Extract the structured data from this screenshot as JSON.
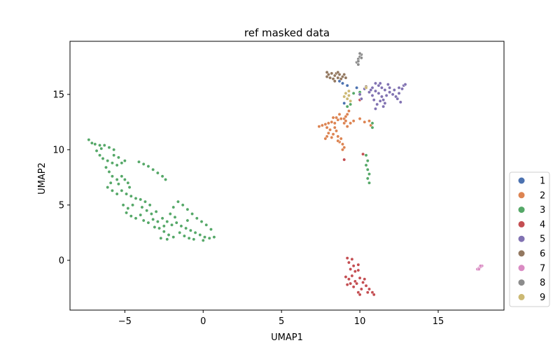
{
  "chart_data": {
    "type": "scatter",
    "title": "ref masked data",
    "xlabel": "UMAP1",
    "ylabel": "UMAP2",
    "xlim": [
      -8.5,
      19.2
    ],
    "ylim": [
      -4.5,
      19.8
    ],
    "xticks": [
      -5,
      0,
      5,
      10,
      15
    ],
    "yticks": [
      0,
      5,
      10,
      15
    ],
    "grid": false,
    "legend_position": "right-outside-bottom",
    "legend": [
      "1",
      "2",
      "3",
      "4",
      "5",
      "6",
      "7",
      "8",
      "9"
    ],
    "series": [
      {
        "name": "1",
        "color": "#4c72b0",
        "points": [
          [
            8.7,
            16.2
          ],
          [
            8.9,
            16.0
          ],
          [
            9.2,
            15.8
          ],
          [
            9.8,
            15.6
          ],
          [
            9.0,
            14.2
          ]
        ]
      },
      {
        "name": "2",
        "color": "#dd8452",
        "points": [
          [
            7.4,
            12.1
          ],
          [
            7.6,
            12.2
          ],
          [
            7.8,
            12.3
          ],
          [
            8.0,
            12.4
          ],
          [
            8.2,
            12.5
          ],
          [
            8.4,
            12.4
          ],
          [
            8.6,
            12.7
          ],
          [
            8.8,
            12.8
          ],
          [
            9.0,
            12.8
          ],
          [
            9.1,
            13.0
          ],
          [
            9.2,
            13.2
          ],
          [
            9.3,
            13.5
          ],
          [
            8.4,
            12.0
          ],
          [
            8.5,
            11.7
          ],
          [
            8.3,
            11.4
          ],
          [
            8.2,
            11.1
          ],
          [
            8.6,
            11.2
          ],
          [
            8.8,
            11.0
          ],
          [
            8.7,
            10.7
          ],
          [
            8.9,
            10.5
          ],
          [
            9.0,
            10.2
          ],
          [
            8.9,
            10.0
          ],
          [
            8.1,
            11.8
          ],
          [
            8.0,
            11.5
          ],
          [
            7.9,
            11.2
          ],
          [
            7.8,
            11.0
          ],
          [
            8.5,
            12.9
          ],
          [
            8.7,
            13.2
          ],
          [
            9.0,
            12.4
          ],
          [
            9.2,
            12.1
          ],
          [
            9.4,
            12.4
          ],
          [
            9.6,
            12.6
          ],
          [
            10.0,
            12.8
          ],
          [
            10.3,
            12.5
          ],
          [
            10.6,
            12.6
          ],
          [
            10.7,
            12.2
          ],
          [
            8.3,
            12.9
          ],
          [
            7.9,
            12.0
          ],
          [
            8.6,
            10.8
          ],
          [
            9.1,
            12.6
          ]
        ]
      },
      {
        "name": "3",
        "color": "#55a868",
        "points": [
          [
            -7.3,
            10.9
          ],
          [
            -7.1,
            10.6
          ],
          [
            -6.9,
            10.5
          ],
          [
            -6.6,
            10.4
          ],
          [
            -6.3,
            10.4
          ],
          [
            -6.0,
            10.2
          ],
          [
            -5.7,
            10.0
          ],
          [
            -6.8,
            9.9
          ],
          [
            -6.6,
            9.5
          ],
          [
            -6.4,
            9.2
          ],
          [
            -6.1,
            9.0
          ],
          [
            -5.8,
            8.8
          ],
          [
            -5.5,
            8.6
          ],
          [
            -5.2,
            8.8
          ],
          [
            -5.4,
            9.3
          ],
          [
            -5.7,
            9.5
          ],
          [
            -6.2,
            8.4
          ],
          [
            -6.0,
            8.0
          ],
          [
            -5.8,
            7.6
          ],
          [
            -5.5,
            7.3
          ],
          [
            -5.2,
            7.6
          ],
          [
            -5.0,
            7.3
          ],
          [
            -4.8,
            7.0
          ],
          [
            -5.4,
            6.9
          ],
          [
            -5.9,
            7.0
          ],
          [
            -6.1,
            6.6
          ],
          [
            -5.8,
            6.3
          ],
          [
            -5.5,
            6.0
          ],
          [
            -5.2,
            6.3
          ],
          [
            -4.9,
            6.0
          ],
          [
            -4.6,
            5.8
          ],
          [
            -4.3,
            5.6
          ],
          [
            -4.0,
            5.5
          ],
          [
            -3.7,
            5.3
          ],
          [
            -3.4,
            5.0
          ],
          [
            -4.5,
            5.0
          ],
          [
            -4.8,
            4.7
          ],
          [
            -5.1,
            5.0
          ],
          [
            -4.9,
            4.3
          ],
          [
            -4.6,
            4.0
          ],
          [
            -4.3,
            3.8
          ],
          [
            -4.0,
            4.1
          ],
          [
            -3.8,
            3.6
          ],
          [
            -3.5,
            3.4
          ],
          [
            -3.2,
            3.7
          ],
          [
            -2.9,
            3.5
          ],
          [
            -2.6,
            3.8
          ],
          [
            -2.3,
            3.5
          ],
          [
            -2.0,
            3.2
          ],
          [
            -1.7,
            3.4
          ],
          [
            -1.4,
            3.1
          ],
          [
            -1.1,
            2.9
          ],
          [
            -0.8,
            2.7
          ],
          [
            -0.5,
            2.5
          ],
          [
            -0.2,
            2.3
          ],
          [
            0.1,
            2.1
          ],
          [
            0.4,
            2.0
          ],
          [
            0.7,
            2.1
          ],
          [
            -2.8,
            2.9
          ],
          [
            -2.5,
            2.6
          ],
          [
            -2.2,
            2.3
          ],
          [
            -1.9,
            2.1
          ],
          [
            -2.3,
            1.9
          ],
          [
            -2.7,
            2.0
          ],
          [
            -1.5,
            2.5
          ],
          [
            -1.2,
            2.2
          ],
          [
            -0.9,
            2.0
          ],
          [
            -0.6,
            1.9
          ],
          [
            0.0,
            1.8
          ],
          [
            -1.6,
            5.3
          ],
          [
            -1.3,
            5.0
          ],
          [
            -1.0,
            4.6
          ],
          [
            -0.7,
            4.2
          ],
          [
            -0.4,
            3.8
          ],
          [
            -0.1,
            3.5
          ],
          [
            0.2,
            3.2
          ],
          [
            0.5,
            2.8
          ],
          [
            -1.9,
            4.8
          ],
          [
            -2.1,
            4.2
          ],
          [
            -1.8,
            3.9
          ],
          [
            -3.0,
            4.4
          ],
          [
            -3.3,
            4.2
          ],
          [
            -3.6,
            4.5
          ],
          [
            -4.1,
            8.9
          ],
          [
            -3.8,
            8.7
          ],
          [
            -3.5,
            8.5
          ],
          [
            -3.2,
            8.2
          ],
          [
            -2.9,
            7.9
          ],
          [
            -2.6,
            7.6
          ],
          [
            -2.4,
            7.3
          ],
          [
            -6.5,
            10.1
          ],
          [
            -5.0,
            9.0
          ],
          [
            -4.7,
            6.6
          ],
          [
            -3.9,
            4.8
          ],
          [
            -2.5,
            3.1
          ],
          [
            -1.0,
            3.6
          ],
          [
            -3.1,
            3.0
          ],
          [
            9.2,
            13.9
          ],
          [
            9.4,
            14.1
          ],
          [
            10.4,
            9.5
          ],
          [
            10.5,
            9.0
          ],
          [
            10.4,
            8.6
          ],
          [
            10.5,
            8.2
          ],
          [
            10.6,
            7.8
          ],
          [
            10.5,
            7.4
          ],
          [
            10.6,
            7.0
          ],
          [
            10.8,
            12.4
          ],
          [
            10.8,
            12.0
          ],
          [
            9.6,
            15.1
          ],
          [
            10.0,
            15.2
          ]
        ]
      },
      {
        "name": "4",
        "color": "#c44e52",
        "points": [
          [
            9.2,
            0.2
          ],
          [
            9.3,
            -0.2
          ],
          [
            9.5,
            0.1
          ],
          [
            9.6,
            -0.5
          ],
          [
            9.4,
            -0.8
          ],
          [
            9.7,
            -1.0
          ],
          [
            9.9,
            -0.9
          ],
          [
            9.5,
            -1.4
          ],
          [
            9.3,
            -1.7
          ],
          [
            9.4,
            -2.1
          ],
          [
            9.7,
            -1.9
          ],
          [
            10.0,
            -1.6
          ],
          [
            10.2,
            -2.0
          ],
          [
            10.4,
            -2.3
          ],
          [
            10.6,
            -2.6
          ],
          [
            10.8,
            -2.9
          ],
          [
            10.9,
            -3.1
          ],
          [
            10.1,
            -2.6
          ],
          [
            9.9,
            -2.9
          ],
          [
            10.0,
            -3.1
          ],
          [
            9.6,
            -2.4
          ],
          [
            9.2,
            -2.2
          ],
          [
            9.8,
            -2.1
          ],
          [
            10.3,
            -1.7
          ],
          [
            10.5,
            -2.9
          ],
          [
            9.1,
            -1.5
          ],
          [
            9.0,
            9.1
          ],
          [
            10.2,
            9.6
          ],
          [
            10.0,
            14.5
          ],
          [
            9.9,
            -0.4
          ]
        ]
      },
      {
        "name": "5",
        "color": "#8172b2",
        "points": [
          [
            10.8,
            15.6
          ],
          [
            11.0,
            15.3
          ],
          [
            11.2,
            15.1
          ],
          [
            11.4,
            14.8
          ],
          [
            11.3,
            14.4
          ],
          [
            11.1,
            14.1
          ],
          [
            11.0,
            13.7
          ],
          [
            11.5,
            14.5
          ],
          [
            11.7,
            14.9
          ],
          [
            11.9,
            15.2
          ],
          [
            12.1,
            15.0
          ],
          [
            12.3,
            14.8
          ],
          [
            12.5,
            15.1
          ],
          [
            12.7,
            15.5
          ],
          [
            12.8,
            15.8
          ],
          [
            12.5,
            15.6
          ],
          [
            12.2,
            15.4
          ],
          [
            11.9,
            15.6
          ],
          [
            11.6,
            15.4
          ],
          [
            11.4,
            15.6
          ],
          [
            11.2,
            15.8
          ],
          [
            11.0,
            16.0
          ],
          [
            10.8,
            14.9
          ],
          [
            10.6,
            15.2
          ],
          [
            11.3,
            16.0
          ],
          [
            11.8,
            15.9
          ],
          [
            12.4,
            14.6
          ],
          [
            12.6,
            14.3
          ],
          [
            10.9,
            14.5
          ],
          [
            10.7,
            15.4
          ],
          [
            10.3,
            15.5
          ],
          [
            10.0,
            15.0
          ],
          [
            10.1,
            14.6
          ],
          [
            12.9,
            15.9
          ],
          [
            11.5,
            13.9
          ],
          [
            11.6,
            14.2
          ]
        ]
      },
      {
        "name": "6",
        "color": "#937860",
        "points": [
          [
            7.9,
            16.6
          ],
          [
            8.0,
            16.8
          ],
          [
            8.2,
            16.9
          ],
          [
            8.4,
            16.7
          ],
          [
            8.5,
            16.9
          ],
          [
            8.7,
            16.8
          ],
          [
            8.9,
            16.6
          ],
          [
            9.0,
            16.8
          ],
          [
            8.6,
            16.5
          ],
          [
            8.3,
            16.4
          ],
          [
            8.1,
            16.5
          ],
          [
            8.8,
            16.4
          ],
          [
            9.1,
            16.5
          ],
          [
            8.4,
            16.2
          ],
          [
            7.9,
            17.0
          ],
          [
            8.6,
            17.0
          ],
          [
            10.4,
            15.7
          ]
        ]
      },
      {
        "name": "7",
        "color": "#da8bc3",
        "points": [
          [
            17.5,
            -0.8
          ],
          [
            17.6,
            -0.7
          ],
          [
            17.7,
            -0.6
          ],
          [
            17.8,
            -0.5
          ],
          [
            17.6,
            -0.8
          ],
          [
            17.7,
            -0.5
          ]
        ]
      },
      {
        "name": "8",
        "color": "#8c8c8c",
        "points": [
          [
            9.8,
            17.9
          ],
          [
            9.9,
            18.2
          ],
          [
            10.0,
            18.4
          ],
          [
            10.1,
            18.6
          ],
          [
            9.9,
            18.0
          ],
          [
            10.0,
            18.7
          ],
          [
            10.1,
            18.3
          ],
          [
            9.9,
            17.7
          ]
        ]
      },
      {
        "name": "9",
        "color": "#ccb974",
        "points": [
          [
            9.1,
            15.1
          ],
          [
            9.3,
            14.9
          ],
          [
            9.2,
            14.6
          ],
          [
            9.4,
            14.4
          ],
          [
            9.0,
            14.8
          ],
          [
            9.3,
            15.3
          ],
          [
            10.4,
            15.6
          ]
        ]
      }
    ]
  }
}
